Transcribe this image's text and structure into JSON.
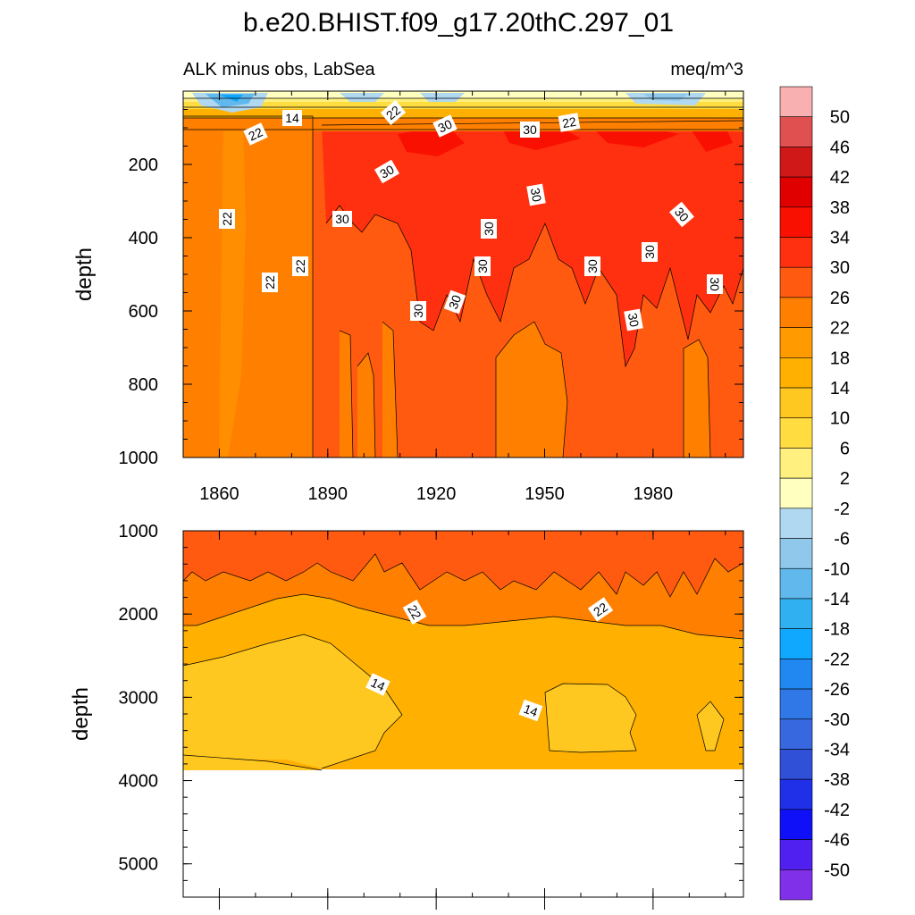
{
  "chart_data": [
    {
      "type": "heatmap",
      "title": "b.e20.BHIST.f09_g17.20thC.297_01",
      "left_subtitle": "ALK minus obs, LabSea",
      "right_subtitle": "meq/m^3",
      "xlabel": "",
      "ylabel": "depth",
      "xlim": [
        1850,
        2005
      ],
      "ylim": [
        1000,
        0
      ],
      "x_ticks": [
        "1860",
        "1890",
        "1920",
        "1950",
        "1980"
      ],
      "y_ticks": [
        "200",
        "400",
        "600",
        "800",
        "1000"
      ],
      "contour_labels": [
        "22",
        "14",
        "22",
        "30",
        "30",
        "22",
        "22",
        "30",
        "22",
        "30",
        "30",
        "30",
        "22",
        "22",
        "30",
        "30",
        "30",
        "30",
        "30",
        "30",
        "30",
        "30",
        "30"
      ],
      "regions": [
        {
          "description_value": 20,
          "x": [
            1850,
            1886
          ],
          "depth": [
            80,
            1000
          ]
        },
        {
          "description_value": 24,
          "x": [
            1886,
            2005
          ],
          "depth": [
            150,
            1000
          ]
        },
        {
          "description_value": 32,
          "x": [
            1895,
            2005
          ],
          "depth": [
            80,
            600
          ]
        },
        {
          "description_value": 0,
          "x": [
            1850,
            2005
          ],
          "depth": [
            0,
            80
          ]
        }
      ]
    },
    {
      "type": "heatmap",
      "xlabel": "",
      "ylabel": "depth",
      "xlim": [
        1850,
        2005
      ],
      "ylim": [
        5400,
        1000
      ],
      "y_ticks": [
        "1000",
        "2000",
        "3000",
        "4000",
        "5000"
      ],
      "contour_labels": [
        "22",
        "22",
        "14",
        "14"
      ],
      "no_data_below_depth": 3870,
      "regions": [
        {
          "description_value": 26,
          "x": [
            1850,
            2005
          ],
          "depth": [
            1000,
            1700
          ]
        },
        {
          "description_value": 20,
          "x": [
            1850,
            2005
          ],
          "depth": [
            1700,
            2300
          ]
        },
        {
          "description_value": 16,
          "x": [
            1850,
            2005
          ],
          "depth": [
            2300,
            3870
          ]
        },
        {
          "description_value": 12,
          "x": [
            1850,
            1910
          ],
          "depth": [
            2300,
            3600
          ]
        },
        {
          "description_value": 12,
          "x": [
            1953,
            1980
          ],
          "depth": [
            2850,
            3600
          ]
        }
      ]
    }
  ],
  "colorbar": {
    "labels": [
      "50",
      "46",
      "42",
      "38",
      "34",
      "30",
      "26",
      "22",
      "18",
      "14",
      "10",
      "6",
      "2",
      "-2",
      "-6",
      "-10",
      "-14",
      "-18",
      "-22",
      "-26",
      "-30",
      "-34",
      "-38",
      "-42",
      "-46",
      "-50"
    ],
    "colors": [
      "#f8b0b0",
      "#e05050",
      "#d01818",
      "#e00000",
      "#fa1000",
      "#ff3010",
      "#ff5a10",
      "#ff8000",
      "#ff9a00",
      "#ffb000",
      "#ffc820",
      "#ffdc40",
      "#fff080",
      "#ffffc0",
      "#b0d8f0",
      "#90c8ec",
      "#60b8ec",
      "#30b0f0",
      "#10a8ff",
      "#2088f0",
      "#3078e8",
      "#3868e0",
      "#3050d8",
      "#2030e8",
      "#1010f8",
      "#5020f0",
      "#8030e8"
    ]
  }
}
